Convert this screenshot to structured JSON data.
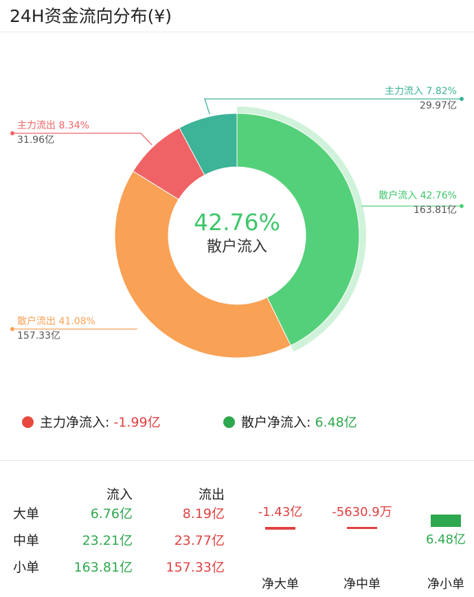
{
  "header": {
    "title": "24H资金流向分布(¥)"
  },
  "chart_data": {
    "type": "pie",
    "title": "24H资金流向分布(¥)",
    "segments": [
      {
        "name": "散户流入",
        "percent": 42.76,
        "amount": "163.81亿",
        "label": "散户流入 42.76%",
        "color": "#55d07a",
        "highlighted": true
      },
      {
        "name": "散户流出",
        "percent": 41.08,
        "amount": "157.33亿",
        "label": "散户流出 41.08%",
        "color": "#f9a155"
      },
      {
        "name": "主力流出",
        "percent": 8.34,
        "amount": "31.96亿",
        "label": "主力流出 8.34%",
        "color": "#ef6366"
      },
      {
        "name": "主力流入",
        "percent": 7.82,
        "amount": "29.97亿",
        "label": "主力流入 7.82%",
        "color": "#3db398"
      }
    ],
    "center": {
      "percent": "42.76%",
      "label": "散户流入"
    }
  },
  "net": {
    "main": {
      "label": "主力净流入:",
      "value": "-1.99亿",
      "dot_color": "#e8493f"
    },
    "retail": {
      "label": "散户净流入:",
      "value": "6.48亿",
      "dot_color": "#2ea84e"
    }
  },
  "table": {
    "headers": {
      "inflow": "流入",
      "outflow": "流出"
    },
    "rows": [
      {
        "name": "大单",
        "inflow": "6.76亿",
        "outflow": "8.19亿"
      },
      {
        "name": "中单",
        "inflow": "23.21亿",
        "outflow": "23.77亿"
      },
      {
        "name": "小单",
        "inflow": "163.81亿",
        "outflow": "157.33亿"
      }
    ]
  },
  "net_bars": {
    "items": [
      {
        "label": "净大单",
        "value": "-1.43亿",
        "amount": -1.43,
        "color": "#e04040"
      },
      {
        "label": "净中单",
        "value": "-5630.9万",
        "amount": -0.563,
        "color": "#e04040"
      },
      {
        "label": "净小单",
        "value": "6.48亿",
        "amount": 6.48,
        "color": "#2ea84e"
      }
    ]
  }
}
